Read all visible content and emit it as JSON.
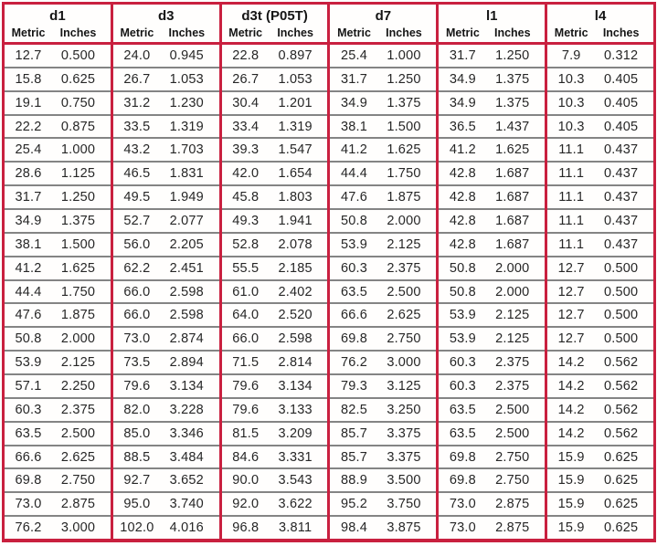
{
  "colors": {
    "accent_red": "#c9203f",
    "row_separator_gray": "#848484",
    "text_black": "#1a1a1a",
    "background": "#ffffff"
  },
  "table": {
    "row_count": 21,
    "groups": [
      {
        "title": "d1",
        "metric_label": "Metric",
        "inches_label": "Inches",
        "metric": [
          "12.7",
          "15.8",
          "19.1",
          "22.2",
          "25.4",
          "28.6",
          "31.7",
          "34.9",
          "38.1",
          "41.2",
          "44.4",
          "47.6",
          "50.8",
          "53.9",
          "57.1",
          "60.3",
          "63.5",
          "66.6",
          "69.8",
          "73.0",
          "76.2"
        ],
        "inches": [
          "0.500",
          "0.625",
          "0.750",
          "0.875",
          "1.000",
          "1.125",
          "1.250",
          "1.375",
          "1.500",
          "1.625",
          "1.750",
          "1.875",
          "2.000",
          "2.125",
          "2.250",
          "2.375",
          "2.500",
          "2.625",
          "2.750",
          "2.875",
          "3.000"
        ]
      },
      {
        "title": "d3",
        "metric_label": "Metric",
        "inches_label": "Inches",
        "metric": [
          "24.0",
          "26.7",
          "31.2",
          "33.5",
          "43.2",
          "46.5",
          "49.5",
          "52.7",
          "56.0",
          "62.2",
          "66.0",
          "66.0",
          "73.0",
          "73.5",
          "79.6",
          "82.0",
          "85.0",
          "88.5",
          "92.7",
          "95.0",
          "102.0"
        ],
        "inches": [
          "0.945",
          "1.053",
          "1.230",
          "1.319",
          "1.703",
          "1.831",
          "1.949",
          "2.077",
          "2.205",
          "2.451",
          "2.598",
          "2.598",
          "2.874",
          "2.894",
          "3.134",
          "3.228",
          "3.346",
          "3.484",
          "3.652",
          "3.740",
          "4.016"
        ]
      },
      {
        "title": "d3t (P05T)",
        "metric_label": "Metric",
        "inches_label": "Inches",
        "metric": [
          "22.8",
          "26.7",
          "30.4",
          "33.4",
          "39.3",
          "42.0",
          "45.8",
          "49.3",
          "52.8",
          "55.5",
          "61.0",
          "64.0",
          "66.0",
          "71.5",
          "79.6",
          "79.6",
          "81.5",
          "84.6",
          "90.0",
          "92.0",
          "96.8"
        ],
        "inches": [
          "0.897",
          "1.053",
          "1.201",
          "1.319",
          "1.547",
          "1.654",
          "1.803",
          "1.941",
          "2.078",
          "2.185",
          "2.402",
          "2.520",
          "2.598",
          "2.814",
          "3.134",
          "3.133",
          "3.209",
          "3.331",
          "3.543",
          "3.622",
          "3.811"
        ]
      },
      {
        "title": "d7",
        "metric_label": "Metric",
        "inches_label": "Inches",
        "metric": [
          "25.4",
          "31.7",
          "34.9",
          "38.1",
          "41.2",
          "44.4",
          "47.6",
          "50.8",
          "53.9",
          "60.3",
          "63.5",
          "66.6",
          "69.8",
          "76.2",
          "79.3",
          "82.5",
          "85.7",
          "85.7",
          "88.9",
          "95.2",
          "98.4"
        ],
        "inches": [
          "1.000",
          "1.250",
          "1.375",
          "1.500",
          "1.625",
          "1.750",
          "1.875",
          "2.000",
          "2.125",
          "2.375",
          "2.500",
          "2.625",
          "2.750",
          "3.000",
          "3.125",
          "3.250",
          "3.375",
          "3.375",
          "3.500",
          "3.750",
          "3.875"
        ]
      },
      {
        "title": "l1",
        "metric_label": "Metric",
        "inches_label": "Inches",
        "metric": [
          "31.7",
          "34.9",
          "34.9",
          "36.5",
          "41.2",
          "42.8",
          "42.8",
          "42.8",
          "42.8",
          "50.8",
          "50.8",
          "53.9",
          "53.9",
          "60.3",
          "60.3",
          "63.5",
          "63.5",
          "69.8",
          "69.8",
          "73.0",
          "73.0"
        ],
        "inches": [
          "1.250",
          "1.375",
          "1.375",
          "1.437",
          "1.625",
          "1.687",
          "1.687",
          "1.687",
          "1.687",
          "2.000",
          "2.000",
          "2.125",
          "2.125",
          "2.375",
          "2.375",
          "2.500",
          "2.500",
          "2.750",
          "2.750",
          "2.875",
          "2.875"
        ]
      },
      {
        "title": "l4",
        "metric_label": "Metric",
        "inches_label": "Inches",
        "metric": [
          "7.9",
          "10.3",
          "10.3",
          "10.3",
          "11.1",
          "11.1",
          "11.1",
          "11.1",
          "11.1",
          "12.7",
          "12.7",
          "12.7",
          "12.7",
          "14.2",
          "14.2",
          "14.2",
          "14.2",
          "15.9",
          "15.9",
          "15.9",
          "15.9"
        ],
        "inches": [
          "0.312",
          "0.405",
          "0.405",
          "0.405",
          "0.437",
          "0.437",
          "0.437",
          "0.437",
          "0.437",
          "0.500",
          "0.500",
          "0.500",
          "0.500",
          "0.562",
          "0.562",
          "0.562",
          "0.562",
          "0.625",
          "0.625",
          "0.625",
          "0.625"
        ]
      }
    ]
  }
}
